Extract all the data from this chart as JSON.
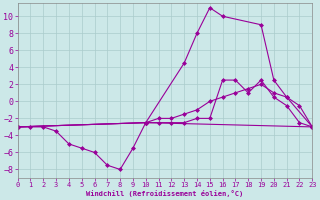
{
  "xlabel": "Windchill (Refroidissement éolien,°C)",
  "background_color": "#cce8e8",
  "grid_color": "#aacccc",
  "line_color": "#990099",
  "spine_color": "#888888",
  "xlim": [
    0,
    23
  ],
  "ylim": [
    -9,
    11.5
  ],
  "xticks": [
    0,
    1,
    2,
    3,
    4,
    5,
    6,
    7,
    8,
    9,
    10,
    11,
    12,
    13,
    14,
    15,
    16,
    17,
    18,
    19,
    20,
    21,
    22,
    23
  ],
  "yticks": [
    -8,
    -6,
    -4,
    -2,
    0,
    2,
    4,
    6,
    8,
    10
  ],
  "line1_x": [
    0,
    1,
    2,
    3,
    4,
    5,
    6,
    7,
    8,
    9,
    10,
    11,
    12,
    13,
    14,
    15,
    16,
    17,
    18,
    19,
    20,
    21,
    22,
    23
  ],
  "line1_y": [
    -3,
    -3,
    -3,
    -3.5,
    -5,
    -5.5,
    -6,
    -7.5,
    -8,
    -5.5,
    -2.5,
    -2.5,
    -2.5,
    -2.5,
    -2,
    -2,
    2.5,
    2.5,
    1,
    2.5,
    0.5,
    -0.5,
    -2.5,
    -3
  ],
  "line2_x": [
    0,
    10,
    13,
    14,
    15,
    16,
    19,
    20,
    21,
    23
  ],
  "line2_y": [
    -3,
    -2.5,
    4.5,
    8,
    11,
    10,
    9,
    2.5,
    0.5,
    -3
  ],
  "line3_x": [
    0,
    10,
    11,
    12,
    13,
    14,
    15,
    16,
    17,
    18,
    19,
    20,
    21,
    22,
    23
  ],
  "line3_y": [
    -3,
    -2.5,
    -2,
    -2,
    -1.5,
    -1,
    0,
    0.5,
    1,
    1.5,
    2,
    1,
    0.5,
    -0.5,
    -3
  ],
  "line4_x": [
    0,
    10,
    23
  ],
  "line4_y": [
    -3,
    -2.5,
    -3
  ],
  "marker": "D",
  "markersize": 2,
  "linewidth": 0.8,
  "tick_fontsize": 5,
  "xlabel_fontsize": 5
}
